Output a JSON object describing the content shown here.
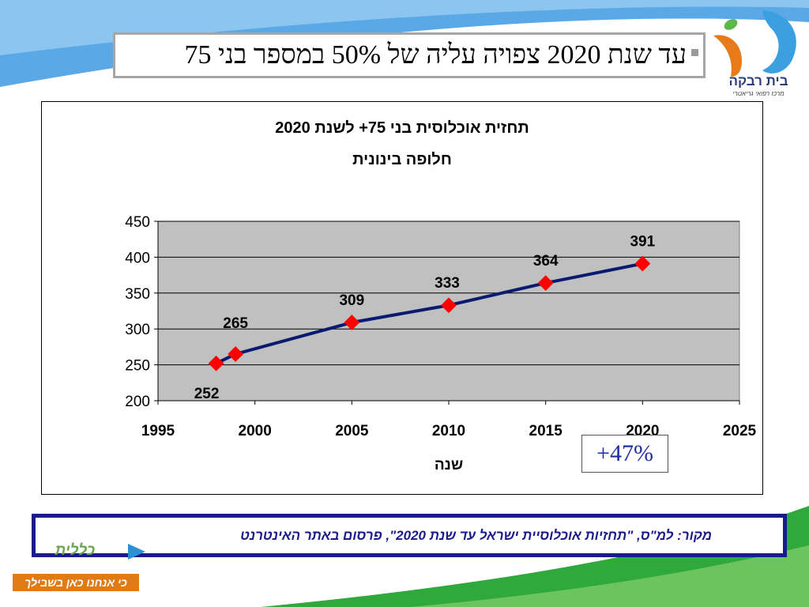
{
  "slide": {
    "title": "עד שנת 2020 צפויה עליה של 50% במספר בני 75",
    "callout": "+47%",
    "source": "מקור: למ\"ס, \"תחזיות אוכלוסיית ישראל עד שנת 2020\", פרסום באתר האינטרנט"
  },
  "logos": {
    "top_right_name": "בית רבקה",
    "top_right_sub": "מרכז רפואי גריאטרי",
    "bottom_left_name": "כללית",
    "bottom_left_slogan": "כי אנחנו כאן בשבילך"
  },
  "colors": {
    "plot_bg": "#c0c0c0",
    "line": "#0a1a70",
    "marker": "#ff0000",
    "source_border": "#1a1a8c",
    "band_blue": "#5aa9e6",
    "band_green": "#2fa83c",
    "logo_blue": "#3aa0e0",
    "logo_orange": "#e87a1a",
    "logo_green": "#5cb84a"
  },
  "chart_data": {
    "type": "line",
    "title": "תחזית אוכלוסית בני 75+ לשנת 2020",
    "subtitle": "חלופה בינונית",
    "xlabel": "שנה",
    "ylabel": "",
    "xlim": [
      1995,
      2025
    ],
    "ylim": [
      200,
      450
    ],
    "xticks": [
      1995,
      2000,
      2005,
      2010,
      2015,
      2020,
      2025
    ],
    "yticks": [
      200,
      250,
      300,
      350,
      400,
      450
    ],
    "grid": "horizontal",
    "legend": "none",
    "series": [
      {
        "x": [
          1998,
          1999,
          2005,
          2010,
          2015,
          2020
        ],
        "values": [
          252,
          265,
          309,
          333,
          364,
          391
        ],
        "labels": [
          "252",
          "265",
          "309",
          "333",
          "364",
          "391"
        ]
      }
    ]
  }
}
